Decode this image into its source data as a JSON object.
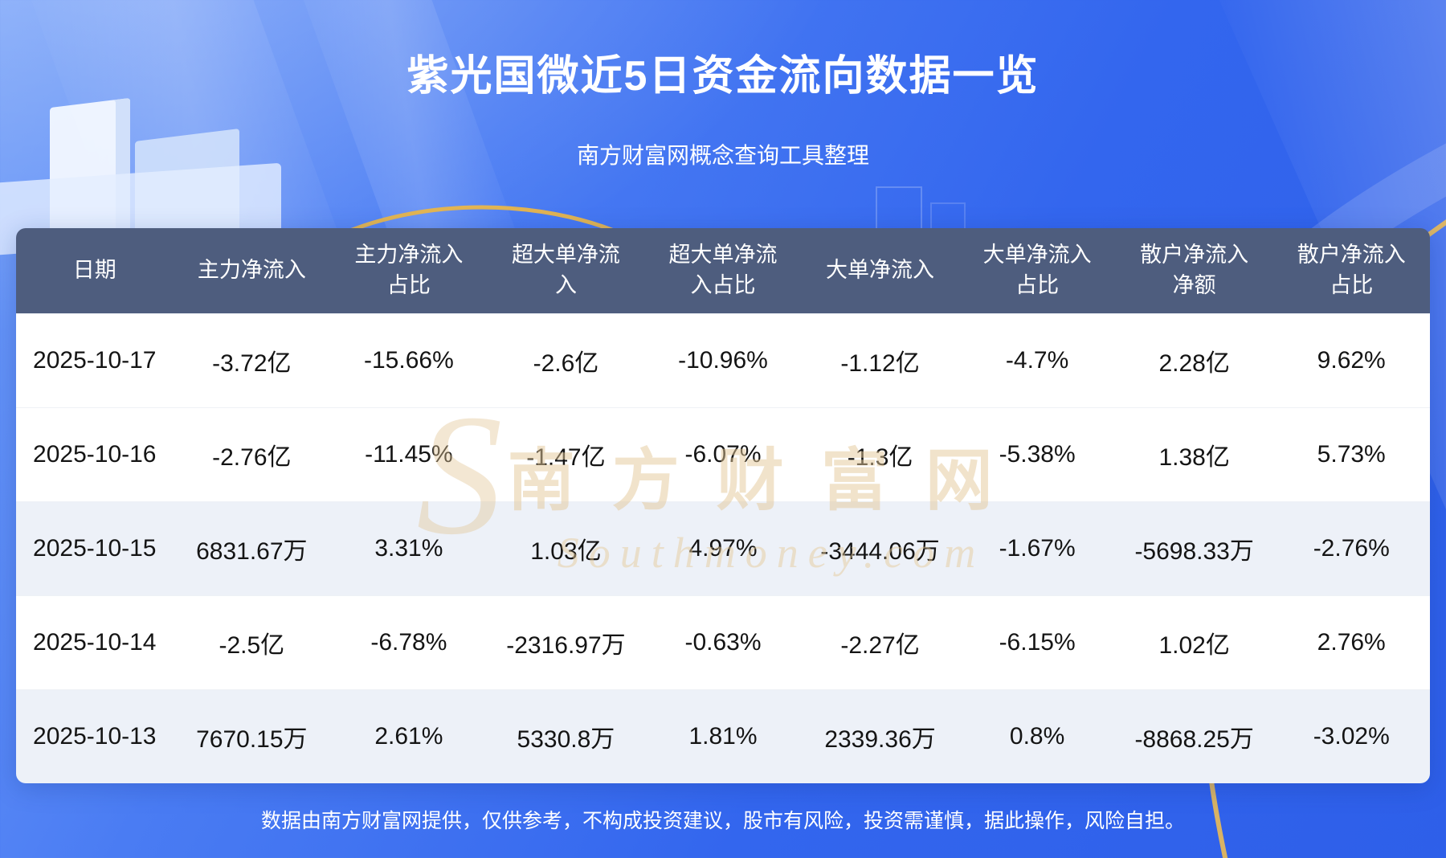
{
  "page": {
    "title": "紫光国微近5日资金流向数据一览",
    "subtitle": "南方财富网概念查询工具整理",
    "footer": "数据由南方财富网提供，仅供参考，不构成投资建议，股市有风险，投资需谨慎，据此操作，风险自担。"
  },
  "watermark": {
    "logo_glyph": "S",
    "line1": "南方财富网",
    "line2": "Southmoney.com"
  },
  "colors": {
    "background_blue": "#3366ee",
    "table_header_bg": "#4e5d7e",
    "row_white": "#ffffff",
    "row_alt": "#edf1f8",
    "accent_gold": "#ecbc55",
    "title_text": "#ffffff",
    "cell_text": "#141414",
    "watermark_tan": "#e4c898"
  },
  "chart_data": {
    "type": "table",
    "title": "紫光国微近5日资金流向数据一览",
    "subtitle": "南方财富网概念查询工具整理",
    "columns": [
      "日期",
      "主力净流入",
      "主力净流入占比",
      "超大单净流入",
      "超大单净流入占比",
      "大单净流入",
      "大单净流入占比",
      "散户净流入净额",
      "散户净流入占比"
    ],
    "rows": [
      [
        "2025-10-17",
        "-3.72亿",
        "-15.66%",
        "-2.6亿",
        "-10.96%",
        "-1.12亿",
        "-4.7%",
        "2.28亿",
        "9.62%"
      ],
      [
        "2025-10-16",
        "-2.76亿",
        "-11.45%",
        "-1.47亿",
        "-6.07%",
        "-1.3亿",
        "-5.38%",
        "1.38亿",
        "5.73%"
      ],
      [
        "2025-10-15",
        "6831.67万",
        "3.31%",
        "1.03亿",
        "4.97%",
        "-3444.06万",
        "-1.67%",
        "-5698.33万",
        "-2.76%"
      ],
      [
        "2025-10-14",
        "-2.5亿",
        "-6.78%",
        "-2316.97万",
        "-0.63%",
        "-2.27亿",
        "-6.15%",
        "1.02亿",
        "2.76%"
      ],
      [
        "2025-10-13",
        "7670.15万",
        "2.61%",
        "5330.8万",
        "1.81%",
        "2339.36万",
        "0.8%",
        "-8868.25万",
        "-3.02%"
      ]
    ],
    "alt_row_indices": [
      2,
      4
    ]
  }
}
